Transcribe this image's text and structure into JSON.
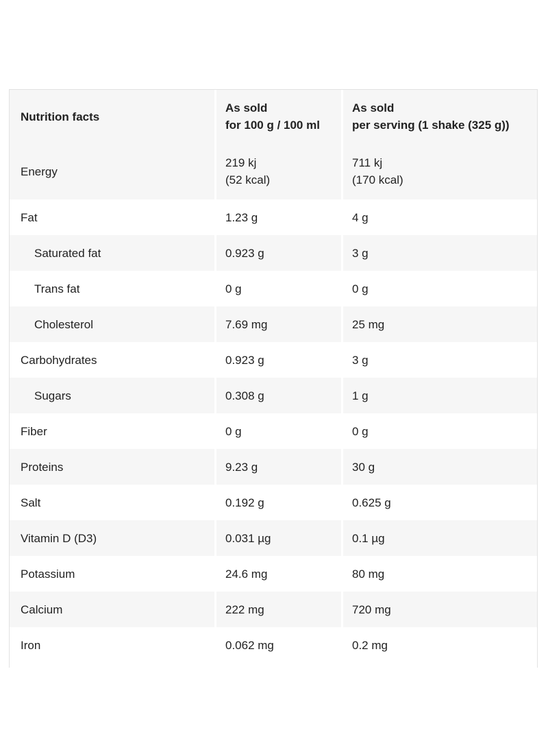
{
  "table": {
    "header": [
      "Nutrition facts",
      [
        "As sold",
        "for 100 g / 100 ml"
      ],
      [
        "As sold",
        "per serving (1 shake (325 g))"
      ]
    ],
    "rows": [
      {
        "cells": [
          "Energy",
          [
            "219 kj",
            "(52 kcal)"
          ],
          [
            "711 kj",
            "(170 kcal)"
          ]
        ],
        "indented": false
      },
      {
        "cells": [
          "Fat",
          "1.23 g",
          "4 g"
        ],
        "indented": false
      },
      {
        "cells": [
          "Saturated fat",
          "0.923 g",
          "3 g"
        ],
        "indented": true
      },
      {
        "cells": [
          "Trans fat",
          "0 g",
          "0 g"
        ],
        "indented": true
      },
      {
        "cells": [
          "Cholesterol",
          "7.69 mg",
          "25 mg"
        ],
        "indented": true
      },
      {
        "cells": [
          "Carbohydrates",
          "0.923 g",
          "3 g"
        ],
        "indented": false
      },
      {
        "cells": [
          "Sugars",
          "0.308 g",
          "1 g"
        ],
        "indented": true
      },
      {
        "cells": [
          "Fiber",
          "0 g",
          "0 g"
        ],
        "indented": false
      },
      {
        "cells": [
          "Proteins",
          "9.23 g",
          "30 g"
        ],
        "indented": false
      },
      {
        "cells": [
          "Salt",
          "0.192 g",
          "0.625 g"
        ],
        "indented": false
      },
      {
        "cells": [
          "Vitamin D (D3)",
          "0.031 µg",
          "0.1 µg"
        ],
        "indented": false
      },
      {
        "cells": [
          "Potassium",
          "24.6 mg",
          "80 mg"
        ],
        "indented": false
      },
      {
        "cells": [
          "Calcium",
          "222 mg",
          "720 mg"
        ],
        "indented": false
      },
      {
        "cells": [
          "Iron",
          "0.062 mg",
          "0.2 mg"
        ],
        "indented": false
      }
    ]
  }
}
